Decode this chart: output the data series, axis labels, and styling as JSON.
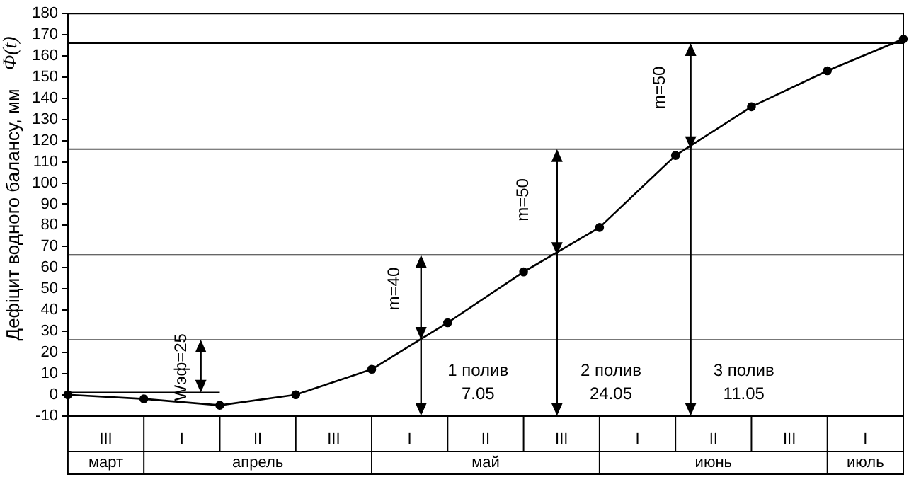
{
  "chart_data": {
    "type": "line",
    "ylabel": "Дефіцит водного балансу, мм",
    "categories": [
      null,
      "III",
      null,
      "I",
      null,
      "II",
      null,
      "III",
      null,
      "I",
      null,
      "II",
      null,
      "III",
      null,
      "I",
      null,
      "II",
      null,
      "III",
      null,
      "I",
      null
    ],
    "ylim": [
      -10,
      180
    ],
    "yticks": [
      -10,
      0,
      10,
      20,
      30,
      40,
      50,
      60,
      70,
      80,
      90,
      100,
      110,
      120,
      130,
      140,
      150,
      160,
      170,
      180
    ],
    "grid": false,
    "legend": false,
    "series": [
      {
        "color": "#000000",
        "marker": "circle",
        "values": [
          0,
          null,
          -2,
          null,
          -5,
          null,
          0,
          null,
          12,
          null,
          34,
          null,
          58,
          null,
          79,
          null,
          113,
          null,
          136,
          null,
          153,
          null,
          168
        ]
      },
      {
        "color": "#000000",
        "marker": "none",
        "values": [
          1,
          null,
          1,
          null,
          1,
          null,
          null,
          null,
          null,
          null,
          null,
          null,
          null,
          null,
          null,
          null,
          null,
          null,
          null,
          null,
          null,
          null,
          null
        ]
      }
    ],
    "ref_lines": [
      {
        "axis": "y",
        "value": 166,
        "color": "#000000"
      },
      {
        "axis": "y",
        "value": 116,
        "color": "#555555"
      },
      {
        "axis": "y",
        "value": 66,
        "color": "#333333"
      },
      {
        "axis": "y",
        "value": 26,
        "color": "#777777"
      }
    ],
    "annotations": [
      "Φ(t)",
      "Wэф=25",
      "m=40",
      "m=50",
      "m=50",
      "1 полив",
      "7.05",
      "2 полив",
      "24.05",
      "3 полив",
      "11.05",
      "март",
      "апрель",
      "май",
      "июнь",
      "июль"
    ]
  }
}
